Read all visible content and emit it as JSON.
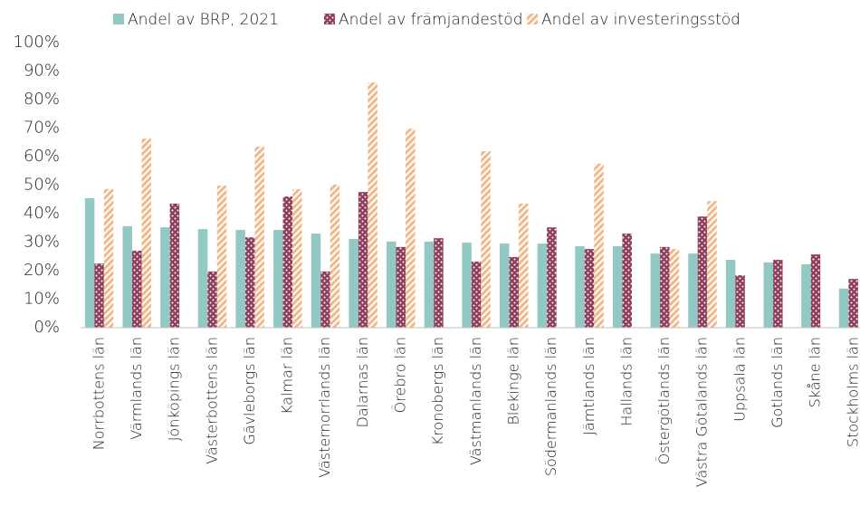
{
  "chart_data": {
    "type": "bar",
    "categories": [
      "Norrbottens län",
      "Värmlands län",
      "Jönköpings län",
      "Västerbottens län",
      "Gävleborgs län",
      "Kalmar län",
      "Västernorrlands län",
      "Dalarnas län",
      "Örebro län",
      "Kronobergs län",
      "Västmanlands län",
      "Blekinge län",
      "Södermanlands län",
      "Jämtlands län",
      "Hallands län",
      "Östergötlands län",
      "Västra Götalands län",
      "Uppsala län",
      "Gotlands län",
      "Skåne län",
      "Stockholms län"
    ],
    "series": [
      {
        "name": "Andel av BRP, 2021",
        "color": "#93c9c4",
        "pattern": "solid",
        "values": [
          45.4,
          35.6,
          35.2,
          34.6,
          34.3,
          34.3,
          33.0,
          31.1,
          30.2,
          30.2,
          29.8,
          29.5,
          29.5,
          28.6,
          28.6,
          26.0,
          26.0,
          23.8,
          22.9,
          22.2,
          13.7
        ]
      },
      {
        "name": "Andel av främjandestöd",
        "color": "#8e3d5a",
        "pattern": "dots",
        "values": [
          22.5,
          27.0,
          43.5,
          19.7,
          31.7,
          46.0,
          19.7,
          47.6,
          28.3,
          31.4,
          23.2,
          24.8,
          35.2,
          27.6,
          33.0,
          28.3,
          39.0,
          18.4,
          23.8,
          25.7,
          17.1
        ]
      },
      {
        "name": "Andel av investeringsstöd",
        "color": "#f2b889",
        "pattern": "diagonal",
        "values": [
          48.6,
          66.3,
          null,
          49.8,
          63.5,
          48.6,
          50.2,
          86.0,
          69.8,
          null,
          61.9,
          43.5,
          null,
          57.5,
          null,
          27.6,
          44.4,
          null,
          null,
          null,
          null
        ]
      }
    ],
    "ylim": [
      0,
      100
    ],
    "yticks": [
      {
        "value": 0,
        "label": "0%"
      },
      {
        "value": 10,
        "label": "10%"
      },
      {
        "value": 20,
        "label": "20%"
      },
      {
        "value": 30,
        "label": "30%"
      },
      {
        "value": 40,
        "label": "40%"
      },
      {
        "value": 50,
        "label": "50%"
      },
      {
        "value": 60,
        "label": "60%"
      },
      {
        "value": 70,
        "label": "70%"
      },
      {
        "value": 80,
        "label": "80%"
      },
      {
        "value": 90,
        "label": "90%"
      },
      {
        "value": 100,
        "label": "100%"
      }
    ],
    "grid": false,
    "legend": "top"
  }
}
